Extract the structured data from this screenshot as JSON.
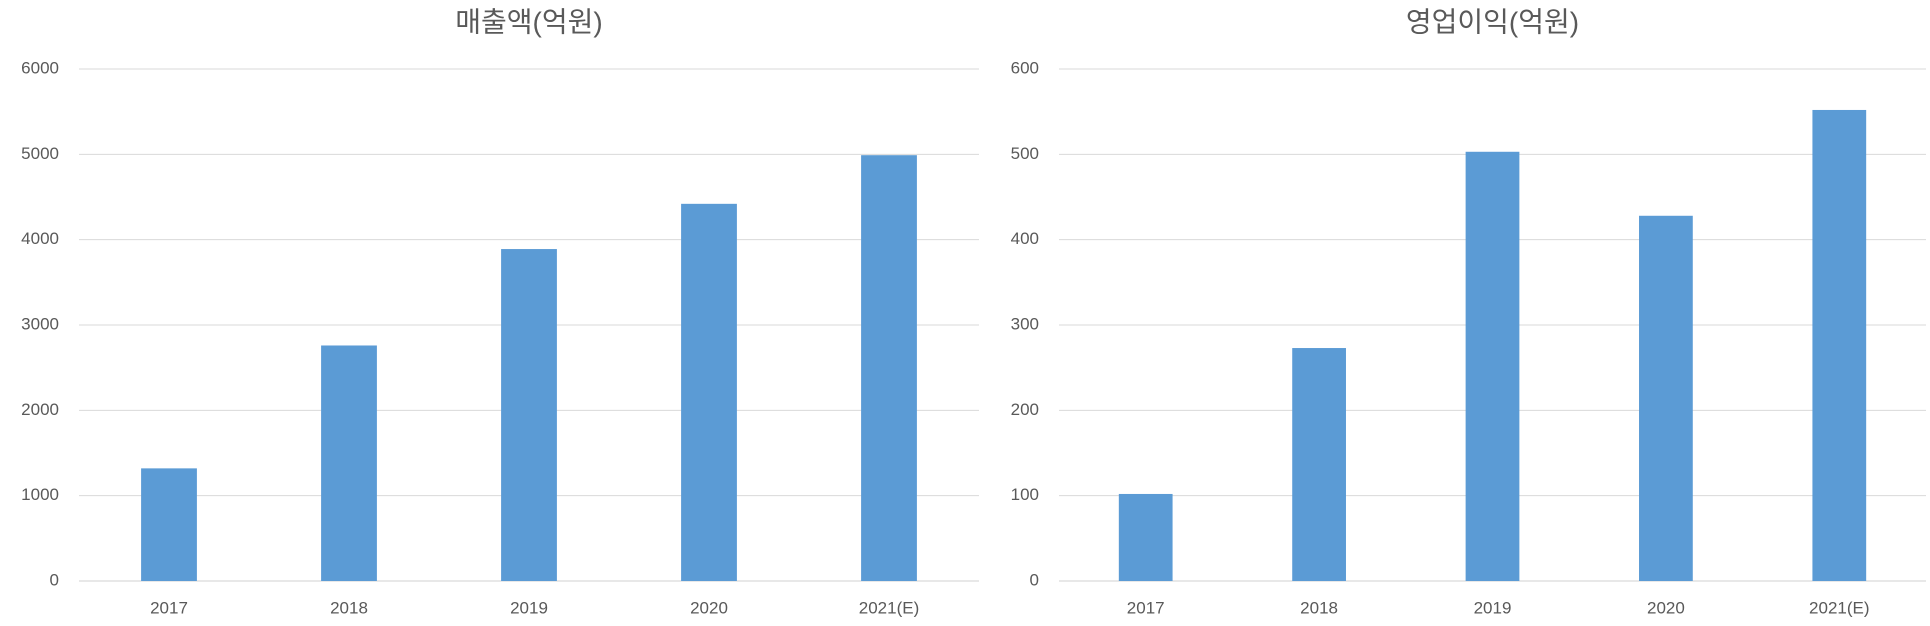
{
  "chart_data": [
    {
      "type": "bar",
      "title": "매출액(억원)",
      "categories": [
        "2017",
        "2018",
        "2019",
        "2020",
        "2021(E)"
      ],
      "values": [
        1320,
        2760,
        3890,
        4420,
        4990
      ],
      "color": "#5b9bd5",
      "ylim": [
        0,
        6000
      ],
      "yticks": [
        0,
        1000,
        2000,
        3000,
        4000,
        5000,
        6000
      ],
      "grid": true
    },
    {
      "type": "bar",
      "title": "영업이익(억원)",
      "categories": [
        "2017",
        "2018",
        "2019",
        "2020",
        "2021(E)"
      ],
      "values": [
        102,
        273,
        503,
        428,
        552
      ],
      "color": "#5b9bd5",
      "ylim": [
        0,
        600
      ],
      "yticks": [
        0,
        100,
        200,
        300,
        400,
        500,
        600
      ],
      "grid": true
    }
  ]
}
